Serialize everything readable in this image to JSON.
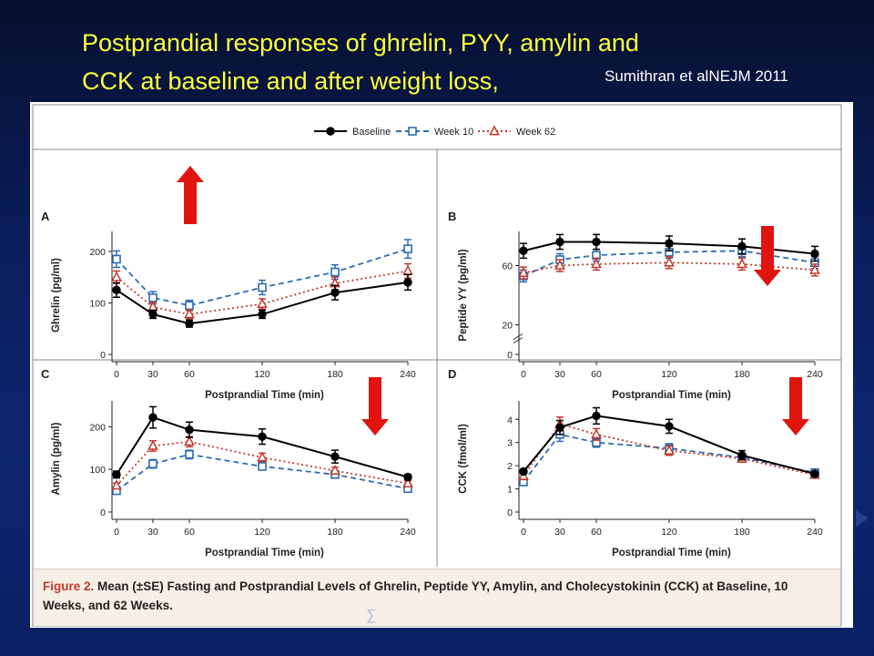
{
  "slide": {
    "title_line1": "Postprandial responses of ghrelin, PYY, amylin and",
    "title_line2": "CCK at baseline and after weight loss,",
    "citation": "Sumithran et alNEJM 2011",
    "sigma_symbol": "∑"
  },
  "legend": {
    "items": [
      {
        "label": "Baseline",
        "color": "#000000",
        "marker": "filled-circle",
        "line": "solid"
      },
      {
        "label": "Week 10",
        "color": "#2b6cb0",
        "marker": "open-square",
        "line": "dashed"
      },
      {
        "label": "Week 62",
        "color": "#c0392b",
        "marker": "open-triangle",
        "line": "dotted"
      }
    ]
  },
  "caption": {
    "label": "Figure 2.",
    "text": "Mean (±SE) Fasting and Postprandial Levels of Ghrelin, Peptide YY, Amylin, and Cholecystokinin (CCK) at Baseline, 10 Weeks, and 62 Weeks."
  },
  "colors": {
    "baseline": "#000000",
    "week10": "#2b6cb0",
    "week62": "#c0392b",
    "arrow": "#e0140f",
    "title": "#ffff3c"
  },
  "chart_data": [
    {
      "panel": "A",
      "type": "line",
      "xlabel": "Postprandial Time (min)",
      "ylabel": "Ghrelin (pg/ml)",
      "x": [
        0,
        30,
        60,
        120,
        180,
        240
      ],
      "xticks": [
        "0",
        "30",
        "60",
        "120",
        "180",
        "240"
      ],
      "ylim": [
        0,
        230
      ],
      "yticks": [
        0,
        100,
        200
      ],
      "series": [
        {
          "name": "Baseline",
          "values": [
            125,
            78,
            60,
            78,
            120,
            140
          ],
          "se": [
            14,
            8,
            7,
            8,
            14,
            15
          ]
        },
        {
          "name": "Week 10",
          "values": [
            185,
            110,
            95,
            130,
            160,
            205
          ],
          "se": [
            16,
            12,
            10,
            14,
            14,
            18
          ]
        },
        {
          "name": "Week 62",
          "values": [
            150,
            92,
            78,
            98,
            138,
            162
          ],
          "se": [
            12,
            9,
            8,
            10,
            12,
            14
          ]
        }
      ],
      "trend_arrow": "up"
    },
    {
      "panel": "B",
      "type": "line",
      "xlabel": "Postprandial Time (min)",
      "ylabel": "Peptide YY (pg/ml)",
      "x": [
        0,
        30,
        60,
        120,
        180,
        240
      ],
      "xticks": [
        "0",
        "30",
        "60",
        "120",
        "180",
        "240"
      ],
      "ylim": [
        0,
        80
      ],
      "yticks": [
        0,
        20,
        60
      ],
      "axis_break": true,
      "series": [
        {
          "name": "Baseline",
          "values": [
            70,
            76,
            76,
            75,
            73,
            68
          ],
          "se": [
            5,
            5,
            5,
            5,
            5,
            5
          ]
        },
        {
          "name": "Week 10",
          "values": [
            53,
            64,
            67,
            69,
            70,
            62
          ],
          "se": [
            4,
            4,
            4,
            4,
            4,
            4
          ]
        },
        {
          "name": "Week 62",
          "values": [
            55,
            60,
            61,
            62,
            61,
            57
          ],
          "se": [
            4,
            4,
            4,
            4,
            4,
            4
          ]
        }
      ],
      "trend_arrow": "down"
    },
    {
      "panel": "C",
      "type": "line",
      "xlabel": "Postprandial Time (min)",
      "ylabel": "Amylin (pg/ml)",
      "x": [
        0,
        30,
        60,
        120,
        180,
        240
      ],
      "xticks": [
        "0",
        "30",
        "60",
        "120",
        "180",
        "240"
      ],
      "ylim": [
        0,
        250
      ],
      "yticks": [
        0,
        100,
        200
      ],
      "series": [
        {
          "name": "Baseline",
          "values": [
            88,
            222,
            193,
            177,
            130,
            82
          ],
          "se": [
            8,
            25,
            18,
            18,
            15,
            6
          ]
        },
        {
          "name": "Week 10",
          "values": [
            50,
            113,
            135,
            107,
            88,
            55
          ],
          "se": [
            5,
            10,
            10,
            8,
            6,
            5
          ]
        },
        {
          "name": "Week 62",
          "values": [
            62,
            155,
            165,
            128,
            97,
            67
          ],
          "se": [
            6,
            12,
            12,
            10,
            8,
            6
          ]
        }
      ],
      "trend_arrow": "down"
    },
    {
      "panel": "D",
      "type": "line",
      "xlabel": "Postprandial Time (min)",
      "ylabel": "CCK (fmol/ml)",
      "x": [
        0,
        30,
        60,
        120,
        180,
        240
      ],
      "xticks": [
        "0",
        "30",
        "60",
        "120",
        "180",
        "240"
      ],
      "ylim": [
        0,
        4.6
      ],
      "yticks": [
        0,
        1,
        2,
        3,
        4
      ],
      "series": [
        {
          "name": "Baseline",
          "values": [
            1.75,
            3.65,
            4.15,
            3.7,
            2.45,
            1.65
          ],
          "se": [
            0.1,
            0.3,
            0.35,
            0.3,
            0.2,
            0.1
          ]
        },
        {
          "name": "Week 10",
          "values": [
            1.3,
            3.35,
            3.0,
            2.75,
            2.35,
            1.7
          ],
          "se": [
            0.15,
            0.3,
            0.2,
            0.2,
            0.15,
            0.1
          ]
        },
        {
          "name": "Week 62",
          "values": [
            1.55,
            3.8,
            3.35,
            2.65,
            2.3,
            1.6
          ],
          "se": [
            0.15,
            0.3,
            0.25,
            0.2,
            0.15,
            0.1
          ]
        }
      ],
      "trend_arrow": "down"
    }
  ]
}
